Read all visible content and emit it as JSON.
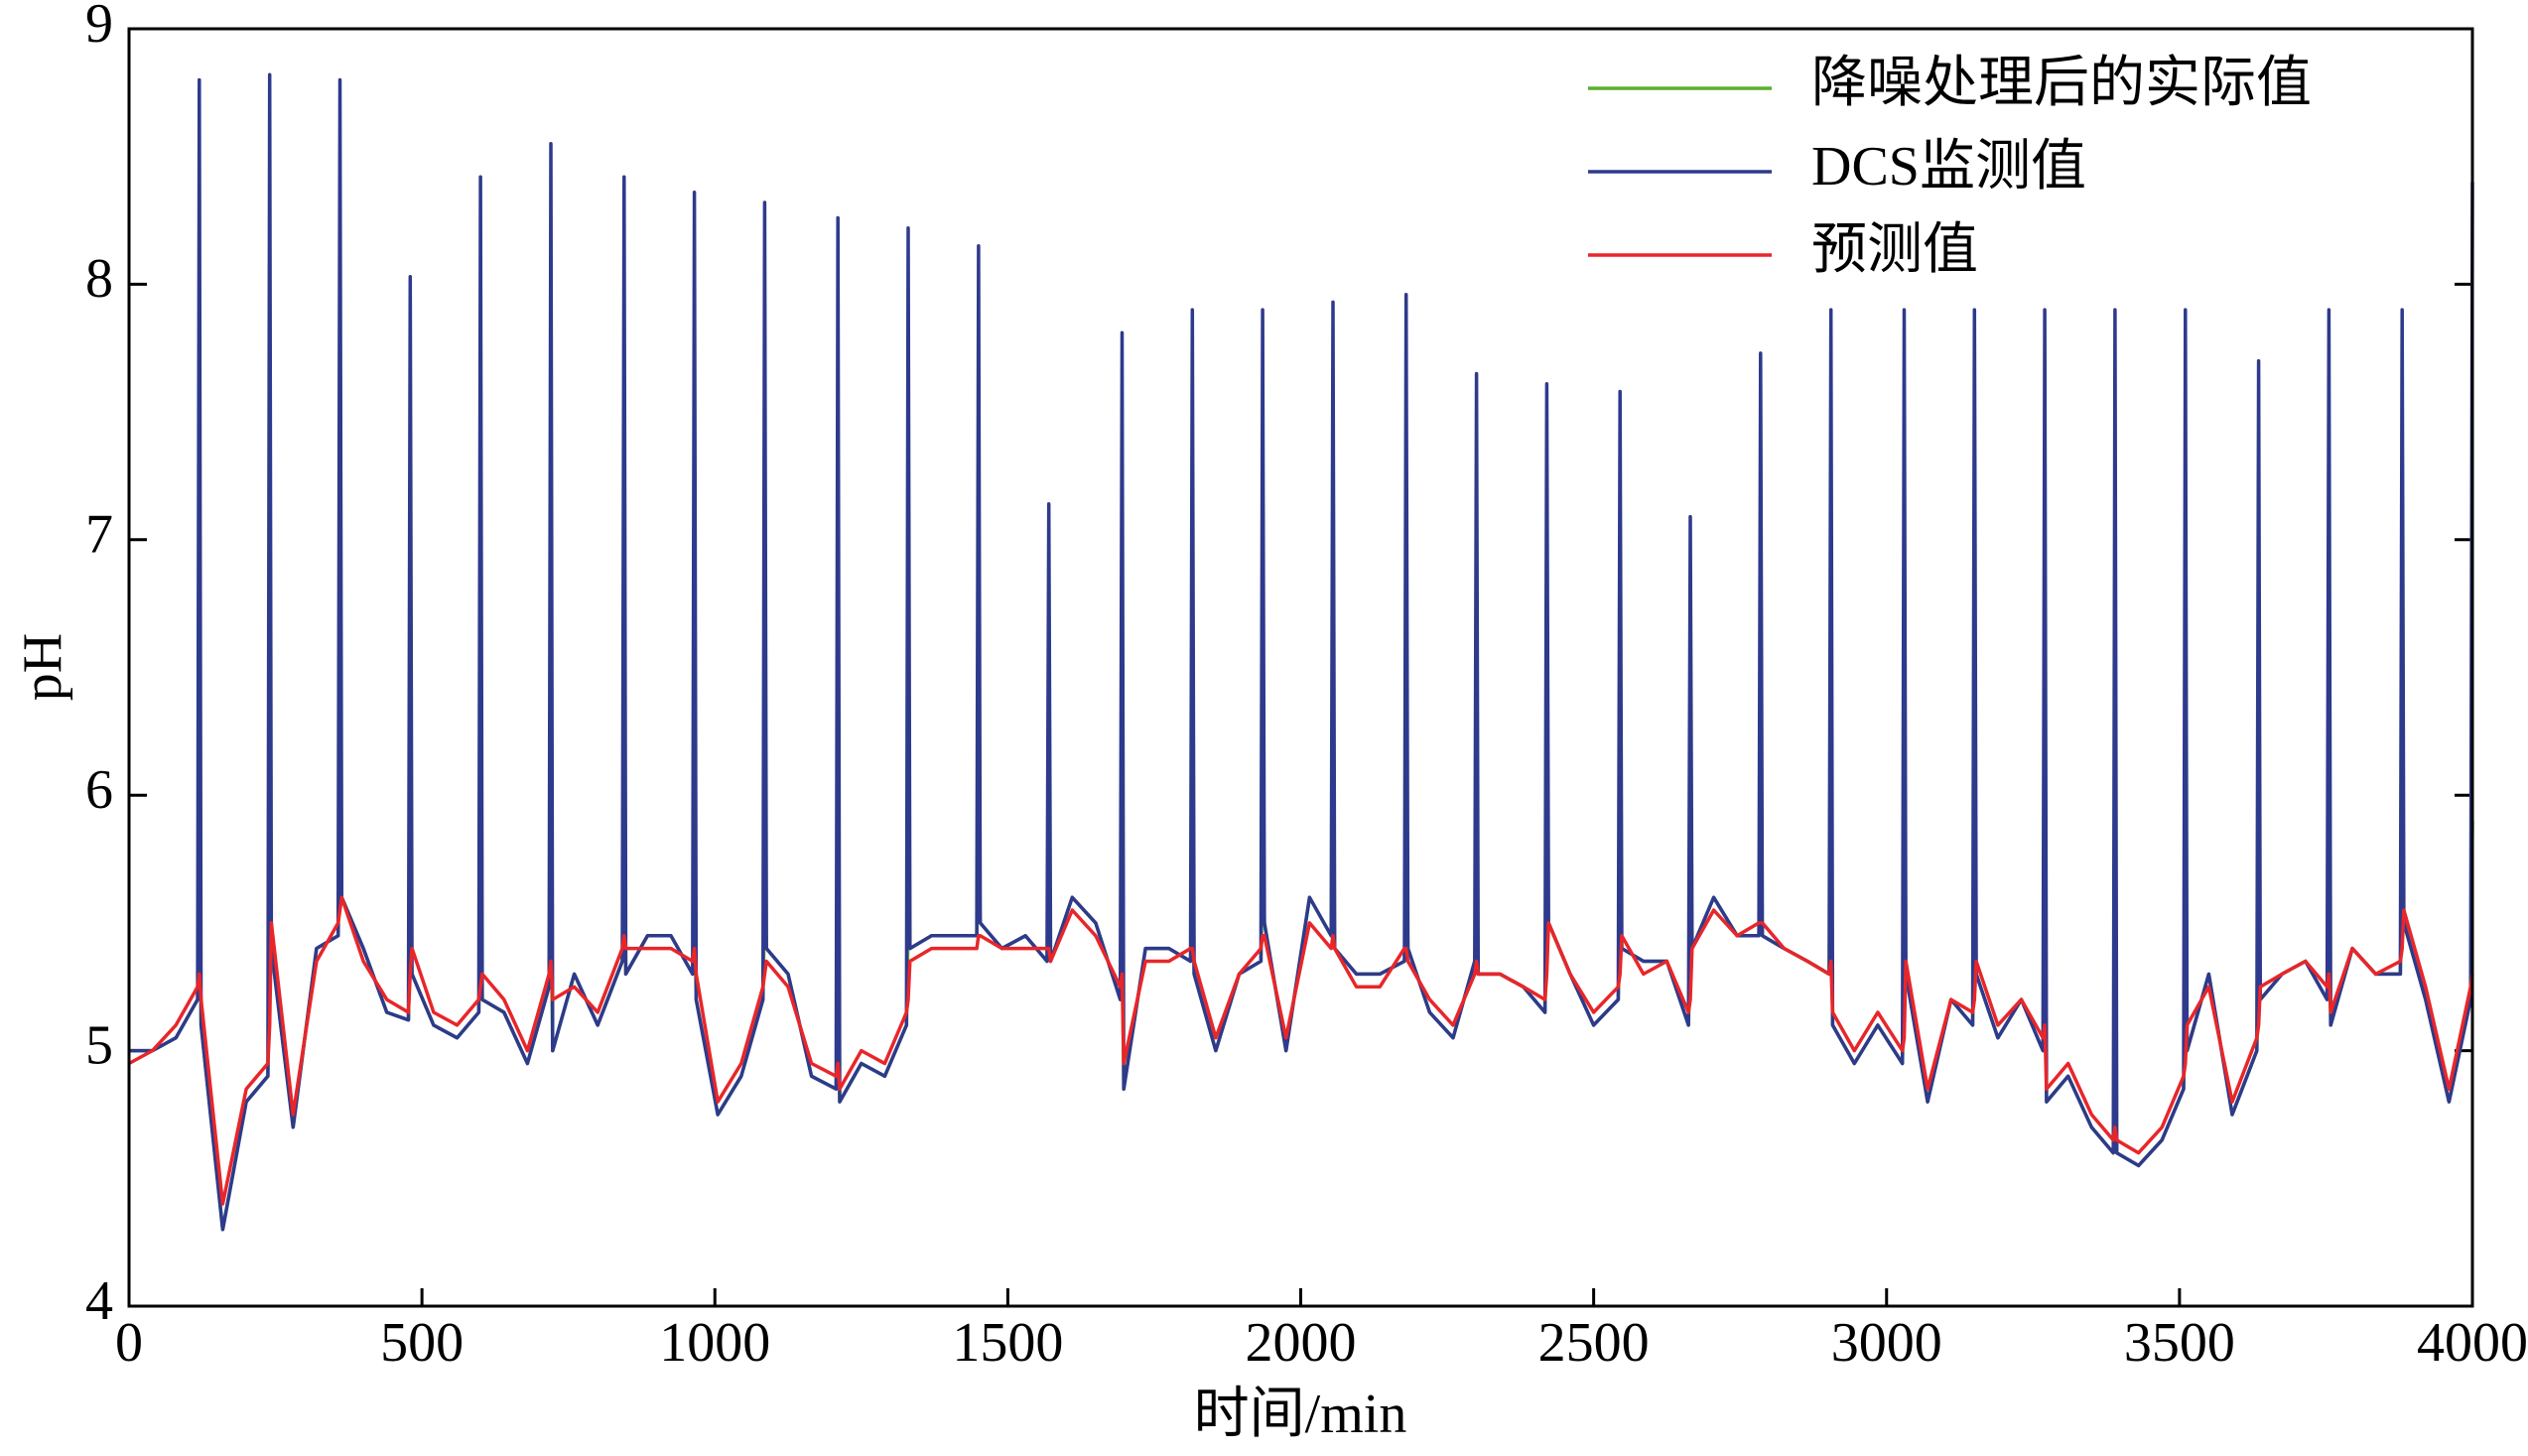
{
  "chart_data": {
    "type": "line",
    "xlabel": "时间/min",
    "ylabel": "pH",
    "x": [
      0,
      40,
      80,
      117,
      120,
      123,
      160,
      200,
      237,
      240,
      243,
      280,
      320,
      357,
      360,
      363,
      400,
      440,
      477,
      480,
      483,
      520,
      560,
      597,
      600,
      603,
      640,
      680,
      717,
      720,
      723,
      760,
      800,
      842,
      845,
      848,
      885,
      925,
      962,
      965,
      968,
      1005,
      1045,
      1082,
      1085,
      1088,
      1125,
      1165,
      1207,
      1210,
      1213,
      1250,
      1290,
      1327,
      1330,
      1333,
      1370,
      1410,
      1447,
      1450,
      1453,
      1490,
      1530,
      1567,
      1570,
      1573,
      1610,
      1650,
      1692,
      1695,
      1698,
      1735,
      1775,
      1812,
      1815,
      1818,
      1855,
      1895,
      1932,
      1935,
      1938,
      1975,
      2015,
      2052,
      2055,
      2058,
      2095,
      2135,
      2177,
      2180,
      2183,
      2220,
      2260,
      2297,
      2300,
      2303,
      2340,
      2380,
      2417,
      2420,
      2423,
      2460,
      2500,
      2542,
      2545,
      2548,
      2585,
      2625,
      2662,
      2665,
      2668,
      2705,
      2745,
      2782,
      2785,
      2788,
      2825,
      2865,
      2902,
      2905,
      2908,
      2945,
      2985,
      3027,
      3030,
      3033,
      3070,
      3110,
      3147,
      3150,
      3153,
      3190,
      3230,
      3267,
      3270,
      3273,
      3310,
      3350,
      3387,
      3390,
      3393,
      3430,
      3470,
      3507,
      3510,
      3513,
      3550,
      3590,
      3632,
      3635,
      3638,
      3675,
      3715,
      3752,
      3755,
      3758,
      3795,
      3835,
      3877,
      3880,
      3883,
      3920,
      3960,
      3997,
      4000
    ],
    "series": [
      {
        "name": "降噪处理后的实际值",
        "color": "#5cae2e",
        "values": [
          5.0,
          5.0,
          5.05,
          5.2,
          5.6,
          5.1,
          4.3,
          4.8,
          4.9,
          5.4,
          5.4,
          4.7,
          5.4,
          5.45,
          5.8,
          5.6,
          5.4,
          5.15,
          5.12,
          5.5,
          5.3,
          5.1,
          5.05,
          5.15,
          5.6,
          5.2,
          5.15,
          4.95,
          5.25,
          5.6,
          5.0,
          5.3,
          5.1,
          5.35,
          5.7,
          5.3,
          5.45,
          5.45,
          5.3,
          5.6,
          5.2,
          4.75,
          4.9,
          5.2,
          5.6,
          5.4,
          5.3,
          4.9,
          4.85,
          5.2,
          4.8,
          4.95,
          4.9,
          5.1,
          5.5,
          5.4,
          5.45,
          5.45,
          5.45,
          5.8,
          5.5,
          5.4,
          5.45,
          5.35,
          5.6,
          5.35,
          5.6,
          5.5,
          5.2,
          5.5,
          4.85,
          5.4,
          5.4,
          5.35,
          5.7,
          5.3,
          5.0,
          5.3,
          5.35,
          5.8,
          5.5,
          5.0,
          5.6,
          5.45,
          5.8,
          5.4,
          5.3,
          5.3,
          5.35,
          5.8,
          5.4,
          5.15,
          5.05,
          5.35,
          5.6,
          5.3,
          5.3,
          5.25,
          5.15,
          5.5,
          5.5,
          5.3,
          5.1,
          5.2,
          5.5,
          5.4,
          5.35,
          5.35,
          5.1,
          5.4,
          5.4,
          5.6,
          5.45,
          5.45,
          5.8,
          5.45,
          5.4,
          5.35,
          5.3,
          5.6,
          5.1,
          4.95,
          5.1,
          4.95,
          5.3,
          5.3,
          4.8,
          5.2,
          5.1,
          5.6,
          5.3,
          5.05,
          5.2,
          5.0,
          5.4,
          4.8,
          4.9,
          4.7,
          4.6,
          5.0,
          4.6,
          4.55,
          4.65,
          4.85,
          5.3,
          5.0,
          5.3,
          4.75,
          5.0,
          5.4,
          5.2,
          5.3,
          5.35,
          5.2,
          5.6,
          5.1,
          5.4,
          5.3,
          5.3,
          5.8,
          5.5,
          5.2,
          4.8,
          5.2,
          5.9
        ]
      },
      {
        "name": "DCS监测值",
        "color": "#2e3a8c",
        "values": [
          5.0,
          5.0,
          5.05,
          5.2,
          8.8,
          5.1,
          4.3,
          4.8,
          4.9,
          8.82,
          5.4,
          4.7,
          5.4,
          5.45,
          8.8,
          5.6,
          5.4,
          5.15,
          5.12,
          8.03,
          5.3,
          5.1,
          5.05,
          5.15,
          8.42,
          5.2,
          5.15,
          4.95,
          5.25,
          8.55,
          5.0,
          5.3,
          5.1,
          5.35,
          8.42,
          5.3,
          5.45,
          5.45,
          5.3,
          8.36,
          5.2,
          4.75,
          4.9,
          5.2,
          8.32,
          5.4,
          5.3,
          4.9,
          4.85,
          8.26,
          4.8,
          4.95,
          4.9,
          5.1,
          8.22,
          5.4,
          5.45,
          5.45,
          5.45,
          8.15,
          5.5,
          5.4,
          5.45,
          5.35,
          7.14,
          5.35,
          5.6,
          5.5,
          5.2,
          7.81,
          4.85,
          5.4,
          5.4,
          5.35,
          7.9,
          5.3,
          5.0,
          5.3,
          5.35,
          7.9,
          5.5,
          5.0,
          5.6,
          5.45,
          7.93,
          5.4,
          5.3,
          5.3,
          5.35,
          7.96,
          5.4,
          5.15,
          5.05,
          5.35,
          7.65,
          5.3,
          5.3,
          5.25,
          5.15,
          7.61,
          5.5,
          5.3,
          5.1,
          5.2,
          7.58,
          5.4,
          5.35,
          5.35,
          5.1,
          7.09,
          5.4,
          5.6,
          5.45,
          5.45,
          7.73,
          5.45,
          5.4,
          5.35,
          5.3,
          7.9,
          5.1,
          4.95,
          5.1,
          4.95,
          7.9,
          5.3,
          4.8,
          5.2,
          5.1,
          7.9,
          5.3,
          5.05,
          5.2,
          5.0,
          7.9,
          4.8,
          4.9,
          4.7,
          4.6,
          7.9,
          4.6,
          4.55,
          4.65,
          4.85,
          7.9,
          5.0,
          5.3,
          4.75,
          5.0,
          7.7,
          5.2,
          5.3,
          5.35,
          5.2,
          7.9,
          5.1,
          5.4,
          5.3,
          5.3,
          7.9,
          5.5,
          5.2,
          4.8,
          5.2,
          8.4
        ]
      },
      {
        "name": "预测值",
        "color": "#e8262a",
        "values": [
          4.95,
          5.0,
          5.1,
          5.25,
          5.3,
          5.2,
          4.4,
          4.85,
          4.95,
          5.1,
          5.5,
          4.75,
          5.35,
          5.5,
          5.55,
          5.6,
          5.35,
          5.2,
          5.15,
          5.3,
          5.4,
          5.15,
          5.1,
          5.2,
          5.25,
          5.3,
          5.2,
          5.0,
          5.3,
          5.35,
          5.2,
          5.25,
          5.15,
          5.4,
          5.45,
          5.4,
          5.4,
          5.4,
          5.35,
          5.4,
          5.3,
          4.8,
          4.95,
          5.25,
          5.3,
          5.35,
          5.25,
          4.95,
          4.9,
          4.95,
          4.85,
          5.0,
          4.95,
          5.15,
          5.2,
          5.35,
          5.4,
          5.4,
          5.4,
          5.45,
          5.45,
          5.4,
          5.4,
          5.4,
          5.4,
          5.35,
          5.55,
          5.45,
          5.25,
          5.3,
          4.95,
          5.35,
          5.35,
          5.4,
          5.4,
          5.35,
          5.05,
          5.3,
          5.4,
          5.45,
          5.45,
          5.05,
          5.5,
          5.4,
          5.45,
          5.4,
          5.25,
          5.25,
          5.4,
          5.4,
          5.35,
          5.2,
          5.1,
          5.3,
          5.35,
          5.3,
          5.3,
          5.25,
          5.2,
          5.3,
          5.5,
          5.3,
          5.15,
          5.25,
          5.3,
          5.45,
          5.3,
          5.35,
          5.15,
          5.2,
          5.4,
          5.55,
          5.45,
          5.5,
          5.5,
          5.5,
          5.4,
          5.35,
          5.3,
          5.35,
          5.15,
          5.0,
          5.15,
          5.0,
          5.05,
          5.35,
          4.85,
          5.2,
          5.15,
          5.2,
          5.35,
          5.1,
          5.2,
          5.05,
          5.1,
          4.85,
          4.95,
          4.75,
          4.65,
          4.7,
          4.65,
          4.6,
          4.7,
          4.9,
          4.95,
          5.1,
          5.25,
          4.8,
          5.05,
          5.1,
          5.25,
          5.3,
          5.35,
          5.25,
          5.3,
          5.15,
          5.4,
          5.3,
          5.35,
          5.4,
          5.55,
          5.25,
          4.85,
          5.25,
          5.3
        ]
      }
    ],
    "xlim": [
      0,
      4000
    ],
    "ylim": [
      4,
      9
    ],
    "xticks": [
      0,
      500,
      1000,
      1500,
      2000,
      2500,
      3000,
      3500,
      4000
    ],
    "yticks": [
      4,
      5,
      6,
      7,
      8,
      9
    ],
    "legend": "upper right"
  }
}
